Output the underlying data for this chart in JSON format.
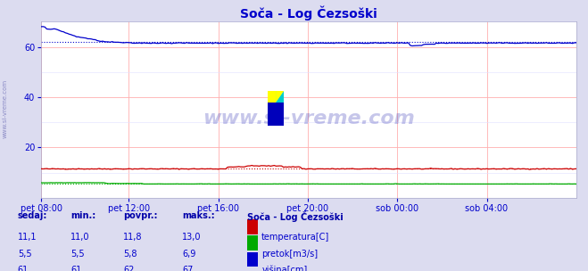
{
  "title": "Soča - Log Čezsoški",
  "title_color": "#0000cc",
  "bg_color": "#dcdcf0",
  "plot_bg_color": "#ffffff",
  "grid_color_major": "#ffb0b0",
  "grid_color_minor": "#e0e0ff",
  "ylim": [
    0,
    70
  ],
  "yticks": [
    20,
    40,
    60
  ],
  "xlabel_color": "#0000cc",
  "ylabel_color": "#0000cc",
  "watermark_text": "www.si-vreme.com",
  "watermark_color": "#4444bb",
  "watermark_alpha": 0.3,
  "sidebar_text": "www.si-vreme.com",
  "sidebar_color": "#7777bb",
  "xtick_labels": [
    "pet 08:00",
    "pet 12:00",
    "pet 16:00",
    "pet 20:00",
    "sob 00:00",
    "sob 04:00"
  ],
  "n_points": 288,
  "temp_color": "#cc0000",
  "temp_avg": 11.8,
  "pretok_color": "#00aa00",
  "pretok_avg": 5.8,
  "visina_color": "#0000cc",
  "visina_avg": 62,
  "legend_title": "Soča - Log Čezsoški",
  "legend_items": [
    "temperatura[C]",
    "pretok[m3/s]",
    "višina[cm]"
  ],
  "table_headers": [
    "sedaj:",
    "min.:",
    "povpr.:",
    "maks.:"
  ],
  "table_rows": [
    [
      "11,1",
      "11,0",
      "11,8",
      "13,0"
    ],
    [
      "5,5",
      "5,5",
      "5,8",
      "6,9"
    ],
    [
      "61",
      "61",
      "62",
      "67"
    ]
  ]
}
